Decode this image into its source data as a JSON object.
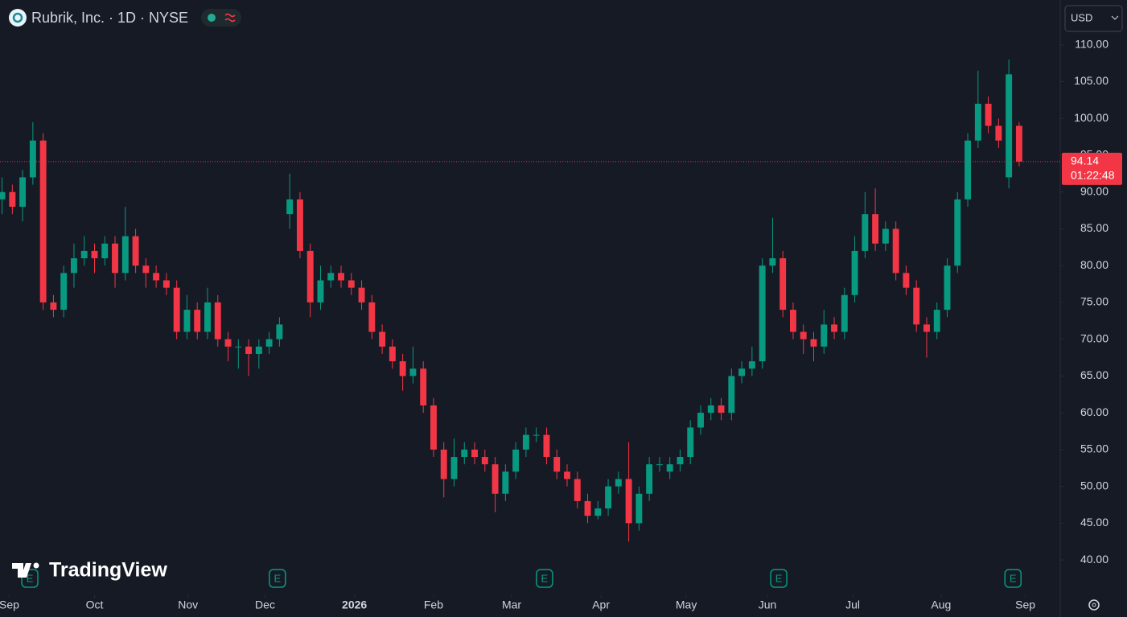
{
  "chart_data": {
    "type": "candlestick",
    "title": "Rubrik, Inc. · 1D · NYSE",
    "currency": "USD",
    "watermark": "TradingView",
    "up_color": "#089981",
    "down_color": "#f23645",
    "open": [
      89,
      90,
      88,
      92,
      97,
      75,
      74,
      79,
      81,
      82,
      81,
      83,
      79,
      84,
      80,
      79,
      78,
      77,
      71,
      74,
      71,
      75,
      70,
      69,
      69,
      68,
      69,
      70,
      87,
      89,
      82,
      75,
      78,
      79,
      78,
      77,
      75,
      71,
      69,
      67,
      65,
      66,
      61,
      55,
      51,
      54,
      55,
      54,
      53,
      49,
      52,
      55,
      57,
      57,
      54,
      52,
      51,
      48,
      46,
      47,
      50,
      51,
      45,
      49,
      53,
      52,
      53,
      54,
      58,
      60,
      61,
      60,
      65,
      66,
      67,
      80,
      81,
      74,
      71,
      70,
      69,
      72,
      71,
      76,
      82,
      87,
      83,
      85,
      79,
      77,
      72,
      71,
      74,
      80,
      89,
      97,
      102,
      99,
      92,
      99
    ],
    "high": [
      92,
      91,
      93,
      99.5,
      98,
      76,
      80,
      83,
      84,
      83,
      84,
      84,
      88,
      85,
      81,
      80,
      79,
      78,
      76,
      75,
      77,
      76,
      71,
      70,
      70,
      70,
      71,
      73,
      92.5,
      90,
      83,
      80,
      80,
      80,
      79,
      78,
      76,
      72,
      70,
      68,
      69,
      67,
      62,
      56,
      56.5,
      56,
      56,
      55,
      54,
      53,
      56,
      58,
      58,
      58,
      55,
      53,
      52,
      49,
      48,
      51,
      52,
      56,
      50,
      54,
      54,
      54,
      55,
      59,
      61,
      62,
      62,
      66,
      67,
      69,
      81,
      86.5,
      82,
      75,
      72,
      71,
      74,
      73,
      77,
      84,
      90,
      90.5,
      86,
      86,
      80,
      78,
      73,
      75,
      81,
      90,
      98,
      106.5,
      103,
      100,
      108,
      99.5
    ],
    "low": [
      87,
      87,
      86,
      91,
      74,
      73,
      73,
      77,
      80,
      79,
      80,
      77,
      78,
      79,
      77,
      77,
      76,
      70,
      70,
      70,
      70,
      69,
      67,
      66,
      65,
      66,
      68,
      69,
      85,
      81,
      73,
      74,
      77,
      77,
      76,
      74,
      70,
      68,
      66,
      63,
      64,
      60,
      54,
      48.5,
      50,
      53,
      53,
      52,
      46.5,
      48,
      51,
      54,
      56,
      53,
      51,
      50,
      47,
      45,
      45.5,
      46,
      49,
      42.5,
      44,
      48,
      52,
      51,
      52,
      53,
      57,
      59,
      59,
      59,
      64,
      65,
      66,
      79,
      73,
      70,
      68,
      67,
      68,
      70,
      70,
      75,
      81,
      82,
      82,
      78,
      76,
      71,
      67.5,
      70,
      73,
      79,
      88,
      96,
      98,
      96,
      90.5,
      93.5
    ],
    "close": [
      90,
      88,
      92,
      97,
      75,
      74,
      79,
      81,
      82,
      81,
      83,
      79,
      84,
      80,
      79,
      78,
      77,
      71,
      74,
      71,
      75,
      70,
      69,
      69,
      68,
      69,
      70,
      72,
      89,
      82,
      75,
      78,
      79,
      78,
      77,
      75,
      71,
      69,
      67,
      65,
      66,
      61,
      55,
      51,
      54,
      55,
      54,
      53,
      49,
      52,
      55,
      57,
      57,
      54,
      52,
      51,
      48,
      46,
      47,
      50,
      51,
      45,
      49,
      53,
      53,
      53,
      54,
      58,
      60,
      61,
      60,
      65,
      66,
      67,
      80,
      81,
      74,
      71,
      70,
      69,
      72,
      71,
      76,
      82,
      87,
      83,
      85,
      79,
      77,
      72,
      71,
      74,
      80,
      89,
      97,
      102,
      99,
      97,
      106,
      94.14
    ],
    "last_price": 94.14,
    "countdown": "01:22:48",
    "xlim": [
      -0.2,
      103
    ],
    "xticks": [
      {
        "value": 0.7,
        "label": "Sep"
      },
      {
        "value": 9,
        "label": "Oct"
      },
      {
        "value": 18.1,
        "label": "Nov"
      },
      {
        "value": 25.6,
        "label": "Dec"
      },
      {
        "value": 34.3,
        "label": "2026"
      },
      {
        "value": 42,
        "label": "Feb"
      },
      {
        "value": 49.6,
        "label": "Mar"
      },
      {
        "value": 58.3,
        "label": "Apr"
      },
      {
        "value": 66.6,
        "label": "May"
      },
      {
        "value": 74.5,
        "label": "Jun"
      },
      {
        "value": 82.8,
        "label": "Jul"
      },
      {
        "value": 91.4,
        "label": "Aug"
      },
      {
        "value": 99.6,
        "label": "Sep"
      }
    ],
    "ylim": [
      35.2,
      116.1
    ],
    "yticks": [
      {
        "value": 40,
        "label": "40.00"
      },
      {
        "value": 45,
        "label": "45.00"
      },
      {
        "value": 50,
        "label": "50.00"
      },
      {
        "value": 55,
        "label": "55.00"
      },
      {
        "value": 60,
        "label": "60.00"
      },
      {
        "value": 65,
        "label": "65.00"
      },
      {
        "value": 70,
        "label": "70.00"
      },
      {
        "value": 75,
        "label": "75.00"
      },
      {
        "value": 80,
        "label": "80.00"
      },
      {
        "value": 85,
        "label": "85.00"
      },
      {
        "value": 90,
        "label": "90.00"
      },
      {
        "value": 95,
        "label": "95.00"
      },
      {
        "value": 100,
        "label": "100.00"
      },
      {
        "value": 105,
        "label": "105.00"
      },
      {
        "value": 110,
        "label": "110.00"
      }
    ],
    "events": [
      {
        "x": 2.7,
        "label": "E"
      },
      {
        "x": 26.8,
        "label": "E"
      },
      {
        "x": 52.8,
        "label": "E"
      },
      {
        "x": 75.6,
        "label": "E"
      },
      {
        "x": 98.4,
        "label": "E"
      }
    ]
  }
}
